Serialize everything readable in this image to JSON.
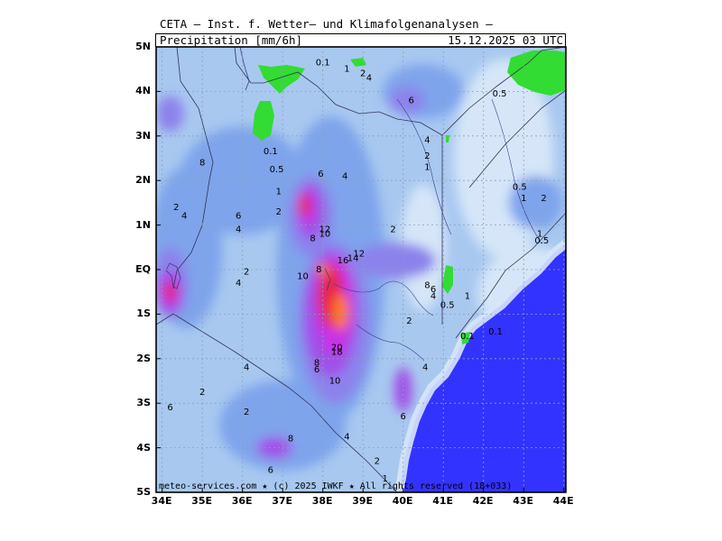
{
  "header": {
    "title": "CETA – Inst. f. Wetter– und Klimafolgenanalysen –",
    "variable": "Precipitation [mm/6h]",
    "valid_time": "15.12.2025 03 UTC"
  },
  "axes": {
    "y_labels": [
      "5N",
      "4N",
      "3N",
      "2N",
      "1N",
      "EQ",
      "1S",
      "2S",
      "3S",
      "4S",
      "5S"
    ],
    "x_labels": [
      "34E",
      "35E",
      "36E",
      "37E",
      "38E",
      "39E",
      "40E",
      "41E",
      "42E",
      "43E",
      "44E"
    ]
  },
  "footer": "meteo-services.com ★ (c) 2025 IWKF ★ All rights reserved (18+033)",
  "colors": {
    "sea": "#3333ff",
    "zero": "#d6e6f8",
    "light": "#a8c8f0",
    "mid": "#7ea4ec",
    "blue_purple": "#8c82ec",
    "purple": "#a050e8",
    "magenta": "#c832e6",
    "red": "#e82846",
    "orange": "#ff7a1e",
    "green": "#32dc32"
  },
  "contour_labels": [
    {
      "t": "0.1",
      "lon": 38.0,
      "lat": 4.65
    },
    {
      "t": "1",
      "lon": 38.6,
      "lat": 4.5
    },
    {
      "t": "2",
      "lon": 39.0,
      "lat": 4.4
    },
    {
      "t": "4",
      "lon": 39.15,
      "lat": 4.3
    },
    {
      "t": "6",
      "lon": 40.2,
      "lat": 3.8
    },
    {
      "t": "0.5",
      "lon": 42.4,
      "lat": 3.95
    },
    {
      "t": "8",
      "lon": 35.0,
      "lat": 2.4
    },
    {
      "t": "0.1",
      "lon": 36.7,
      "lat": 2.65
    },
    {
      "t": "0.5",
      "lon": 36.85,
      "lat": 2.25
    },
    {
      "t": "6",
      "lon": 37.95,
      "lat": 2.15
    },
    {
      "t": "4",
      "lon": 38.55,
      "lat": 2.1
    },
    {
      "t": "4",
      "lon": 40.6,
      "lat": 2.9
    },
    {
      "t": "2",
      "lon": 40.6,
      "lat": 2.55
    },
    {
      "t": "1",
      "lon": 40.6,
      "lat": 2.3
    },
    {
      "t": "0.5",
      "lon": 42.9,
      "lat": 1.85
    },
    {
      "t": "1",
      "lon": 43.0,
      "lat": 1.6
    },
    {
      "t": "2",
      "lon": 43.5,
      "lat": 1.6
    },
    {
      "t": "2",
      "lon": 34.35,
      "lat": 1.4
    },
    {
      "t": "4",
      "lon": 34.55,
      "lat": 1.2
    },
    {
      "t": "6",
      "lon": 35.9,
      "lat": 1.2
    },
    {
      "t": "1",
      "lon": 36.9,
      "lat": 1.75
    },
    {
      "t": "2",
      "lon": 36.9,
      "lat": 1.3
    },
    {
      "t": "4",
      "lon": 35.9,
      "lat": 0.9
    },
    {
      "t": "12",
      "lon": 38.05,
      "lat": 0.9
    },
    {
      "t": "10",
      "lon": 38.05,
      "lat": 0.8
    },
    {
      "t": "8",
      "lon": 37.75,
      "lat": 0.7
    },
    {
      "t": "2",
      "lon": 39.75,
      "lat": 0.9
    },
    {
      "t": "1",
      "lon": 43.4,
      "lat": 0.8
    },
    {
      "t": "0.5",
      "lon": 43.45,
      "lat": 0.65
    },
    {
      "t": "12",
      "lon": 38.9,
      "lat": 0.35
    },
    {
      "t": "14",
      "lon": 38.75,
      "lat": 0.25
    },
    {
      "t": "16",
      "lon": 38.5,
      "lat": 0.2
    },
    {
      "t": "8",
      "lon": 37.9,
      "lat": 0.0
    },
    {
      "t": "10",
      "lon": 37.5,
      "lat": -0.15
    },
    {
      "t": "2",
      "lon": 36.1,
      "lat": -0.05
    },
    {
      "t": "4",
      "lon": 35.9,
      "lat": -0.3
    },
    {
      "t": "8",
      "lon": 40.6,
      "lat": -0.35
    },
    {
      "t": "6",
      "lon": 40.75,
      "lat": -0.45
    },
    {
      "t": "4",
      "lon": 40.75,
      "lat": -0.6
    },
    {
      "t": "1",
      "lon": 41.6,
      "lat": -0.6
    },
    {
      "t": "0.5",
      "lon": 41.1,
      "lat": -0.8
    },
    {
      "t": "2",
      "lon": 40.15,
      "lat": -1.15
    },
    {
      "t": "0.1",
      "lon": 41.6,
      "lat": -1.5
    },
    {
      "t": "0.1",
      "lon": 42.3,
      "lat": -1.4
    },
    {
      "t": "20",
      "lon": 38.35,
      "lat": -1.75
    },
    {
      "t": "18",
      "lon": 38.35,
      "lat": -1.85
    },
    {
      "t": "8",
      "lon": 37.85,
      "lat": -2.1
    },
    {
      "t": "6",
      "lon": 37.85,
      "lat": -2.25
    },
    {
      "t": "10",
      "lon": 38.3,
      "lat": -2.5
    },
    {
      "t": "4",
      "lon": 36.1,
      "lat": -2.2
    },
    {
      "t": "4",
      "lon": 40.55,
      "lat": -2.2
    },
    {
      "t": "2",
      "lon": 35.0,
      "lat": -2.75
    },
    {
      "t": "6",
      "lon": 34.2,
      "lat": -3.1
    },
    {
      "t": "2",
      "lon": 36.1,
      "lat": -3.2
    },
    {
      "t": "6",
      "lon": 40.0,
      "lat": -3.3
    },
    {
      "t": "4",
      "lon": 38.6,
      "lat": -3.75
    },
    {
      "t": "8",
      "lon": 37.2,
      "lat": -3.8
    },
    {
      "t": "2",
      "lon": 39.35,
      "lat": -4.3
    },
    {
      "t": "6",
      "lon": 36.7,
      "lat": -4.5
    },
    {
      "t": "1",
      "lon": 39.55,
      "lat": -4.7
    }
  ]
}
